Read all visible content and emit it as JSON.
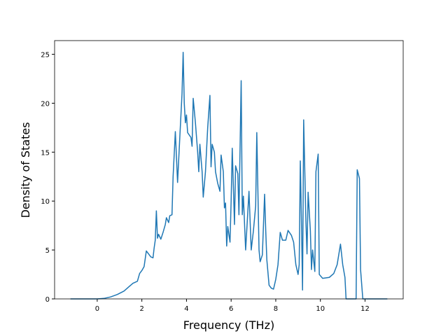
{
  "chart_data": {
    "type": "line",
    "x_label": "Frequency (THz)",
    "y_label": "Density of States",
    "xlim": [
      -1.91,
      13.71
    ],
    "ylim": [
      0,
      26.4
    ],
    "xticks": [
      0,
      2,
      4,
      6,
      8,
      10,
      12
    ],
    "yticks": [
      0,
      5,
      10,
      15,
      20,
      25
    ],
    "series": [
      {
        "color": "#1f77b4",
        "x": [
          -1.2,
          -0.5,
          0,
          0.3,
          0.6,
          0.9,
          1.2,
          1.4,
          1.6,
          1.8,
          1.9,
          2.0,
          2.1,
          2.2,
          2.3,
          2.4,
          2.5,
          2.55,
          2.6,
          2.65,
          2.7,
          2.75,
          2.85,
          2.95,
          3.05,
          3.1,
          3.2,
          3.25,
          3.35,
          3.4,
          3.5,
          3.6,
          3.7,
          3.8,
          3.85,
          3.9,
          3.95,
          4.0,
          4.05,
          4.2,
          4.25,
          4.3,
          4.4,
          4.5,
          4.55,
          4.6,
          4.7,
          4.75,
          4.85,
          4.95,
          5.05,
          5.1,
          5.15,
          5.25,
          5.3,
          5.4,
          5.5,
          5.55,
          5.65,
          5.7,
          5.75,
          5.8,
          5.85,
          5.95,
          6.0,
          6.05,
          6.15,
          6.2,
          6.3,
          6.35,
          6.45,
          6.5,
          6.55,
          6.65,
          6.7,
          6.8,
          6.85,
          6.9,
          7.0,
          7.1,
          7.15,
          7.25,
          7.3,
          7.4,
          7.5,
          7.55,
          7.6,
          7.7,
          7.8,
          7.9,
          8.0,
          8.1,
          8.2,
          8.3,
          8.45,
          8.55,
          8.7,
          8.8,
          8.9,
          9.0,
          9.05,
          9.1,
          9.15,
          9.2,
          9.25,
          9.35,
          9.4,
          9.45,
          9.55,
          9.6,
          9.65,
          9.75,
          9.8,
          9.9,
          9.95,
          10.1,
          10.4,
          10.6,
          10.75,
          10.9,
          11.0,
          11.1,
          11.15,
          11.4,
          11.6,
          11.65,
          11.75,
          11.8,
          11.9,
          12.2,
          13.0
        ],
        "values": [
          0,
          0,
          0,
          0.05,
          0.2,
          0.45,
          0.8,
          1.2,
          1.6,
          1.8,
          2.6,
          2.9,
          3.3,
          4.9,
          4.6,
          4.3,
          4.2,
          5.2,
          6.0,
          9.0,
          6.2,
          6.6,
          6.1,
          6.8,
          7.6,
          8.3,
          7.8,
          8.5,
          8.6,
          12.5,
          17.1,
          11.9,
          16.5,
          21.0,
          25.2,
          20.0,
          18.0,
          18.8,
          17.0,
          16.5,
          15.6,
          20.5,
          18.0,
          15.0,
          13.0,
          15.8,
          13.0,
          10.4,
          13.0,
          17.5,
          20.8,
          13.5,
          15.8,
          15.0,
          13.0,
          11.8,
          11.0,
          14.7,
          13.0,
          9.3,
          9.8,
          5.4,
          7.4,
          5.8,
          10.0,
          15.4,
          7.6,
          13.6,
          12.8,
          8.6,
          22.3,
          8.6,
          10.5,
          5.0,
          7.0,
          11.0,
          8.0,
          5.0,
          7.0,
          9.5,
          17.0,
          5.0,
          3.8,
          4.5,
          10.7,
          7.0,
          4.0,
          1.4,
          1.1,
          1.0,
          2.0,
          3.5,
          6.8,
          6.0,
          6.0,
          7.0,
          6.5,
          5.8,
          3.5,
          2.5,
          3.5,
          14.1,
          8.0,
          0.9,
          18.3,
          8.0,
          4.6,
          10.9,
          7.0,
          3.0,
          5.0,
          2.8,
          13.0,
          14.8,
          2.5,
          2.1,
          2.2,
          2.6,
          3.5,
          5.6,
          3.5,
          2.2,
          0,
          0,
          0,
          13.2,
          12.3,
          3.0,
          0,
          0,
          0
        ]
      }
    ]
  }
}
